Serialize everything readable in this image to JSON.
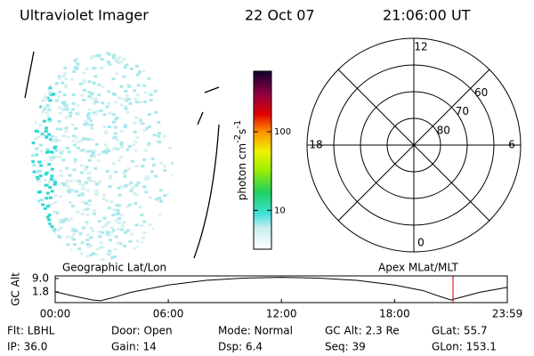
{
  "header": {
    "title": "Ultraviolet Imager",
    "date": "22 Oct 07",
    "time": "21:06:00 UT"
  },
  "colorbar": {
    "label": "photon cm",
    "exp1": "-2",
    "unit2": "s",
    "exp2": "-1",
    "scale": "log",
    "lim": [
      3.2,
      590
    ],
    "ticks": [
      10,
      100
    ]
  },
  "polar": {
    "rlim": [
      90,
      50
    ],
    "rings": [
      80,
      70,
      60
    ],
    "hours": [
      12,
      18,
      6,
      0
    ]
  },
  "altitude": {
    "title_left": "Geographic Lat/Lon",
    "title_right": "Apex MLat/MLT",
    "ylabel": "GC Alt",
    "xlim": [
      0,
      23.98
    ],
    "ylim": [
      -4,
      10.4
    ],
    "yticks": [
      {
        "value": 9,
        "label": "9.0"
      },
      1.8
    ],
    "xticks": [
      {
        "value": 0,
        "label": "00:00"
      },
      {
        "value": 6,
        "label": "06:00"
      },
      {
        "value": 12,
        "label": "12:00"
      },
      {
        "value": 18,
        "label": "18:00"
      },
      {
        "value": 23.98,
        "label": "23:59"
      }
    ],
    "x": [
      0,
      1,
      2,
      2.4,
      3,
      4,
      6,
      8,
      10,
      12,
      14,
      16,
      18,
      19.5,
      20.5,
      21,
      21.5,
      22.5,
      23.98
    ],
    "values": [
      1.8,
      -0.5,
      -2.6,
      -3.0,
      -1.5,
      1.5,
      5.5,
      8.0,
      9.2,
      9.6,
      9.2,
      8.0,
      5.5,
      2.5,
      -1.0,
      -2.6,
      -1.2,
      1.5,
      4.2
    ],
    "marker_x": 21.1,
    "marker_color": "#d00000"
  },
  "info": [
    [
      "Flt: LBHL",
      "Door: Open",
      "Mode: Normal",
      "GC Alt: 2.3 Re",
      "GLat: 55.7"
    ],
    [
      "IP: 36.0",
      "Gain: 14",
      "Dsp:    6.4",
      "Seq: 39",
      "GLon: 153.1"
    ]
  ]
}
